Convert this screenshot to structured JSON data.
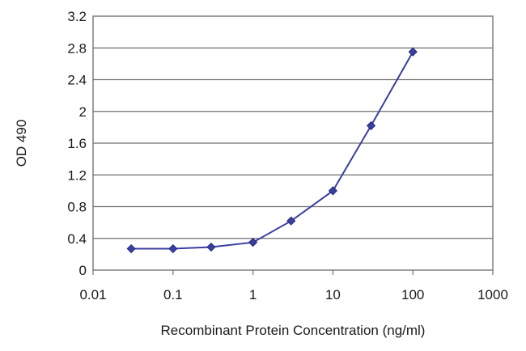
{
  "chart_data": {
    "type": "line",
    "xlabel": "Recombinant Protein Concentration (ng/ml)",
    "ylabel": "OD 490",
    "x_scale": "log",
    "xlim": [
      0.01,
      1000
    ],
    "ylim": [
      0,
      3.2
    ],
    "x_ticks": [
      "0.01",
      "0.1",
      "1",
      "10",
      "100",
      "1000"
    ],
    "y_ticks": [
      "0",
      "0.4",
      "0.8",
      "1.2",
      "1.6",
      "2",
      "2.4",
      "2.8",
      "3.2"
    ],
    "grid": "horizontal",
    "series": [
      {
        "color": "#3a3fa0",
        "x": [
          0.03,
          0.1,
          0.3,
          1,
          3,
          10,
          30,
          100
        ],
        "y": [
          0.27,
          0.27,
          0.29,
          0.35,
          0.62,
          1.0,
          1.82,
          2.75
        ]
      }
    ]
  }
}
